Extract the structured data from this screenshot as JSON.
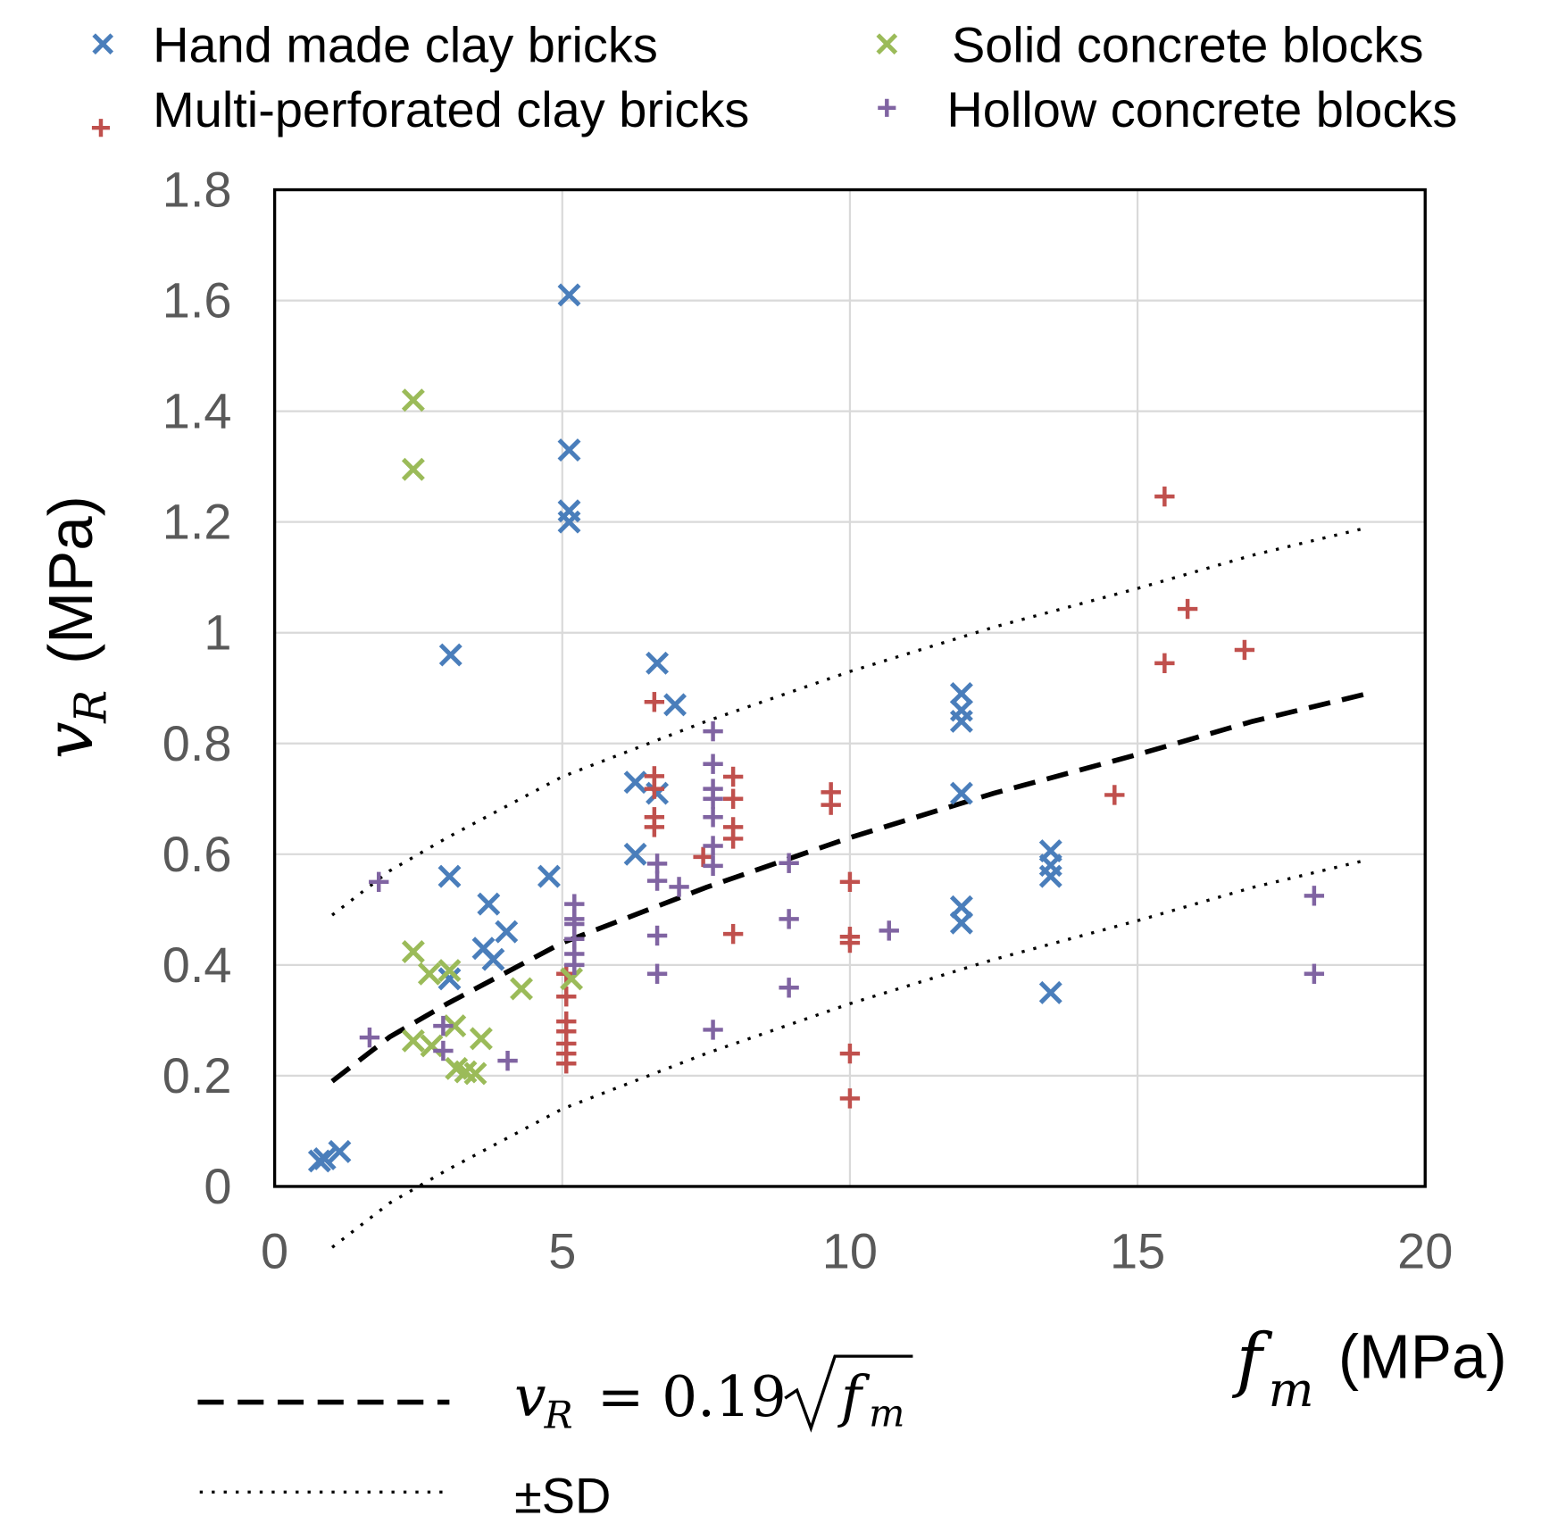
{
  "chart_data": {
    "type": "scatter",
    "title": "",
    "xlabel": {
      "var": "f",
      "sub": "m",
      "unit": "(MPa)"
    },
    "ylabel": {
      "var": "v",
      "sub": "R",
      "unit": "(MPa)"
    },
    "xlim": [
      0,
      20
    ],
    "ylim": [
      0,
      1.8
    ],
    "xticks": [
      "0",
      "5",
      "10",
      "15",
      "20"
    ],
    "yticks": [
      "0",
      "0.2",
      "0.4",
      "0.6",
      "0.8",
      "1",
      "1.2",
      "1.4",
      "1.6",
      "1.8"
    ],
    "grid": true,
    "legend_position": "top",
    "series": [
      {
        "name": "Hand made clay bricks",
        "marker": "x",
        "color": "#4a7ebb",
        "points": [
          [
            0.78,
            0.046
          ],
          [
            0.87,
            0.05
          ],
          [
            1.13,
            0.063
          ],
          [
            5.12,
            1.61
          ],
          [
            5.12,
            1.33
          ],
          [
            5.12,
            1.22
          ],
          [
            5.12,
            1.2
          ],
          [
            3.06,
            0.96
          ],
          [
            6.65,
            0.945
          ],
          [
            6.96,
            0.87
          ],
          [
            6.27,
            0.73
          ],
          [
            6.65,
            0.71
          ],
          [
            6.27,
            0.6
          ],
          [
            4.77,
            0.56
          ],
          [
            3.04,
            0.56
          ],
          [
            3.72,
            0.51
          ],
          [
            4.03,
            0.46
          ],
          [
            3.63,
            0.43
          ],
          [
            3.8,
            0.41
          ],
          [
            3.04,
            0.375
          ],
          [
            11.94,
            0.89
          ],
          [
            11.94,
            0.86
          ],
          [
            11.94,
            0.84
          ],
          [
            11.94,
            0.71
          ],
          [
            11.94,
            0.505
          ],
          [
            11.94,
            0.476
          ],
          [
            13.49,
            0.606
          ],
          [
            13.49,
            0.58
          ],
          [
            13.49,
            0.56
          ],
          [
            13.49,
            0.35
          ]
        ]
      },
      {
        "name": "Multi-perforated clay bricks",
        "marker": "+",
        "color": "#c0504d",
        "points": [
          [
            15.47,
            1.246
          ],
          [
            15.87,
            1.043
          ],
          [
            15.47,
            0.945
          ],
          [
            16.86,
            0.969
          ],
          [
            14.6,
            0.707
          ],
          [
            6.6,
            0.875
          ],
          [
            6.6,
            0.741
          ],
          [
            6.6,
            0.718
          ],
          [
            6.6,
            0.667
          ],
          [
            6.6,
            0.649
          ],
          [
            7.45,
            0.595
          ],
          [
            7.97,
            0.74
          ],
          [
            7.97,
            0.7
          ],
          [
            7.97,
            0.649
          ],
          [
            7.97,
            0.628
          ],
          [
            7.97,
            0.456
          ],
          [
            9.67,
            0.712
          ],
          [
            9.67,
            0.689
          ],
          [
            10.0,
            0.55
          ],
          [
            10.0,
            0.451
          ],
          [
            10.0,
            0.44
          ],
          [
            10.0,
            0.24
          ],
          [
            10.0,
            0.159
          ],
          [
            5.07,
            0.384
          ],
          [
            5.07,
            0.343
          ],
          [
            5.07,
            0.298
          ],
          [
            5.07,
            0.28
          ],
          [
            5.07,
            0.258
          ],
          [
            5.07,
            0.24
          ],
          [
            5.07,
            0.222
          ]
        ]
      },
      {
        "name": "Solid concrete blocks",
        "marker": "x",
        "color": "#9bbb59",
        "points": [
          [
            2.41,
            1.42
          ],
          [
            2.41,
            1.295
          ],
          [
            2.41,
            0.424
          ],
          [
            2.69,
            0.384
          ],
          [
            3.04,
            0.39
          ],
          [
            4.29,
            0.357
          ],
          [
            5.16,
            0.375
          ],
          [
            2.41,
            0.263
          ],
          [
            2.73,
            0.254
          ],
          [
            3.13,
            0.29
          ],
          [
            3.59,
            0.267
          ],
          [
            3.16,
            0.213
          ],
          [
            3.32,
            0.207
          ],
          [
            3.49,
            0.204
          ]
        ]
      },
      {
        "name": "Hollow concrete blocks",
        "marker": "+",
        "color": "#8064a2",
        "points": [
          [
            1.81,
            0.55
          ],
          [
            1.65,
            0.269
          ],
          [
            2.93,
            0.29
          ],
          [
            2.93,
            0.245
          ],
          [
            4.05,
            0.227
          ],
          [
            5.21,
            0.51
          ],
          [
            5.21,
            0.483
          ],
          [
            5.21,
            0.474
          ],
          [
            5.21,
            0.447
          ],
          [
            5.21,
            0.42
          ],
          [
            5.21,
            0.4
          ],
          [
            6.65,
            0.583
          ],
          [
            6.65,
            0.552
          ],
          [
            6.65,
            0.453
          ],
          [
            6.65,
            0.384
          ],
          [
            7.03,
            0.541
          ],
          [
            7.62,
            0.822
          ],
          [
            7.62,
            0.763
          ],
          [
            7.62,
            0.718
          ],
          [
            7.62,
            0.7
          ],
          [
            7.62,
            0.667
          ],
          [
            7.62,
            0.615
          ],
          [
            7.62,
            0.579
          ],
          [
            7.62,
            0.283
          ],
          [
            8.94,
            0.584
          ],
          [
            8.94,
            0.483
          ],
          [
            8.94,
            0.359
          ],
          [
            10.68,
            0.462
          ],
          [
            18.07,
            0.525
          ],
          [
            18.07,
            0.384
          ]
        ]
      }
    ],
    "lines": {
      "mean": {
        "label_lhs_var": "v",
        "label_lhs_sub": "R",
        "label_eq": "= 0.19",
        "label_rhs_var": "f",
        "label_rhs_sub": "m",
        "style": "dashed",
        "points": [
          [
            1,
            0.19
          ],
          [
            2,
            0.27
          ],
          [
            3,
            0.33
          ],
          [
            5,
            0.44
          ],
          [
            7.5,
            0.54
          ],
          [
            10,
            0.63
          ],
          [
            12.5,
            0.71
          ],
          [
            15,
            0.78
          ],
          [
            17,
            0.84
          ],
          [
            19,
            0.89
          ]
        ]
      },
      "sd": {
        "label": "±SD",
        "style": "dotted",
        "offset": 0.3
      }
    }
  }
}
